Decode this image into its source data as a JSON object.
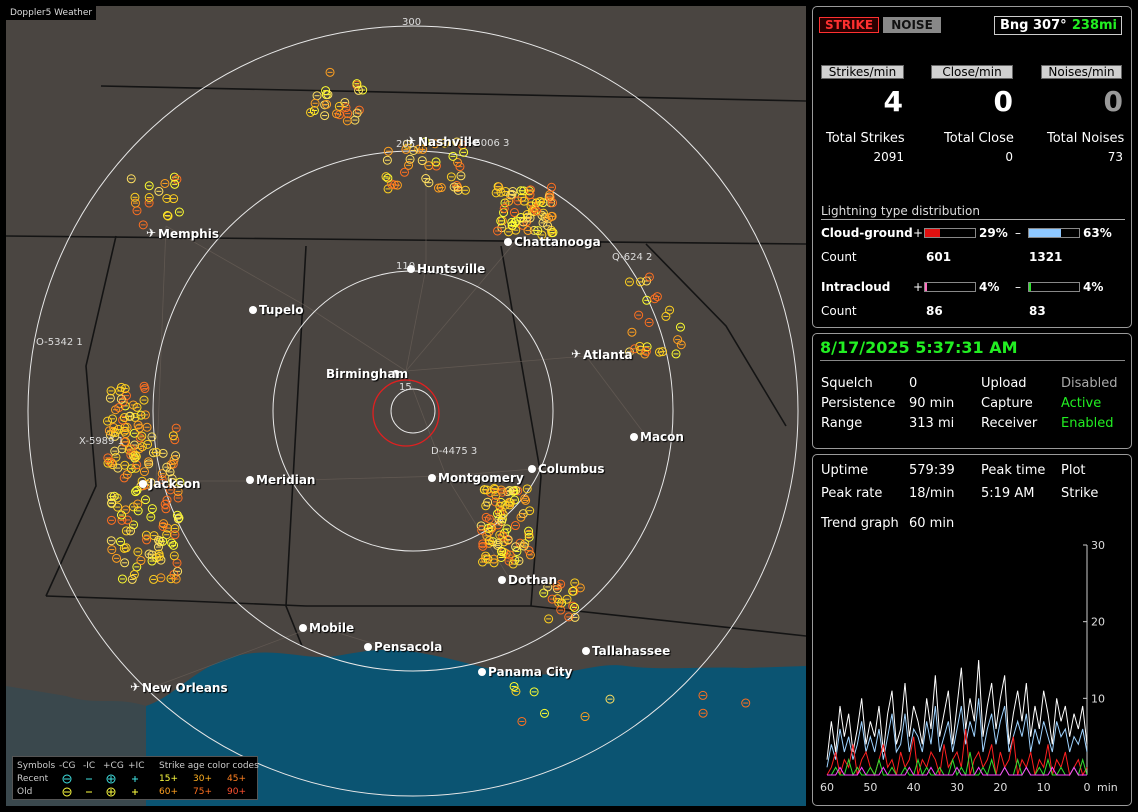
{
  "app": {
    "brand": "Doppler5 Weather"
  },
  "map": {
    "ring_labels": [
      "300",
      "205",
      "110",
      "15"
    ],
    "cities": [
      {
        "name": "Nashville",
        "airport": true
      },
      {
        "name": "Memphis",
        "airport": true
      },
      {
        "name": "Chattanooga",
        "airport": false
      },
      {
        "name": "Huntsville",
        "airport": false
      },
      {
        "name": "Tupelo",
        "airport": false
      },
      {
        "name": "Atlanta",
        "airport": true
      },
      {
        "name": "Birmingham",
        "airport": false
      },
      {
        "name": "Macon",
        "airport": false
      },
      {
        "name": "Jackson",
        "airport": false
      },
      {
        "name": "Meridian",
        "airport": false
      },
      {
        "name": "Montgomery",
        "airport": false
      },
      {
        "name": "Columbus",
        "airport": false
      },
      {
        "name": "Dothan",
        "airport": false
      },
      {
        "name": "Mobile",
        "airport": false
      },
      {
        "name": "Pensacola",
        "airport": false
      },
      {
        "name": "Tallahassee",
        "airport": false
      },
      {
        "name": "Panama City",
        "airport": false
      },
      {
        "name": "New Orleans",
        "airport": true
      }
    ],
    "sensor_labels": [
      "P-6006 3",
      "Q-624 2",
      "O-5342 1",
      "X-5989 1",
      "D-4475 3"
    ],
    "legend": {
      "symbols_label": "Symbols",
      "cols": [
        "-CG",
        "-IC",
        "+CG",
        "+IC"
      ],
      "recent_label": "Recent",
      "old_label": "Old",
      "age_title": "Strike age color codes",
      "age_recent": [
        "15+",
        "30+",
        "45+"
      ],
      "age_old": [
        "60+",
        "75+",
        "90+"
      ]
    }
  },
  "stats": {
    "strike_btn": "STRIKE",
    "noise_btn": "NOISE",
    "bearing": "Bng 307°",
    "distance": "238mi",
    "headers": [
      "Strikes/min",
      "Close/min",
      "Noises/min"
    ],
    "rates": [
      "4",
      "0",
      "0"
    ],
    "totals_labels": [
      "Total Strikes",
      "Total Close",
      "Total Noises"
    ],
    "totals": [
      "2091",
      "0",
      "73"
    ],
    "dist_title": "Lightning type distribution",
    "cg_label": "Cloud-ground",
    "cg_pos_pct": "29%",
    "cg_neg_pct": "63%",
    "count_label": "Count",
    "cg_pos_count": "601",
    "cg_neg_count": "1321",
    "ic_label": "Intracloud",
    "ic_pos_pct": "4%",
    "ic_neg_pct": "4%",
    "ic_pos_count": "86",
    "ic_neg_count": "83",
    "plus": "+",
    "minus": "–",
    "bar_fill": {
      "cg_pos": 0.29,
      "cg_neg": 0.63,
      "ic_pos": 0.04,
      "ic_neg": 0.04
    }
  },
  "status": {
    "datetime": "8/17/2025 5:37:31 AM",
    "squelch_label": "Squelch",
    "squelch": "0",
    "upload_label": "Upload",
    "upload": "Disabled",
    "persistence_label": "Persistence",
    "persistence": "90 min",
    "capture_label": "Capture",
    "capture": "Active",
    "range_label": "Range",
    "range": "313 mi",
    "receiver_label": "Receiver",
    "receiver": "Enabled"
  },
  "trend": {
    "uptime_label": "Uptime",
    "uptime": "579:39",
    "peak_time_label": "Peak time",
    "plot_label": "Plot",
    "peak_rate_label": "Peak rate",
    "peak_rate": "18/min",
    "peak_time": "5:19 AM",
    "plot": "Strike",
    "trend_label": "Trend graph",
    "trend": "60 min",
    "y_ticks": [
      "30",
      "20",
      "10"
    ],
    "x_ticks": [
      "60",
      "50",
      "40",
      "30",
      "20",
      "10",
      "0"
    ],
    "x_unit": "min"
  },
  "chart_data": {
    "type": "line",
    "x": [
      60,
      59,
      58,
      57,
      56,
      55,
      54,
      53,
      52,
      51,
      50,
      49,
      48,
      47,
      46,
      45,
      44,
      43,
      42,
      41,
      40,
      39,
      38,
      37,
      36,
      35,
      34,
      33,
      32,
      31,
      30,
      29,
      28,
      27,
      26,
      25,
      24,
      23,
      22,
      21,
      20,
      19,
      18,
      17,
      16,
      15,
      14,
      13,
      12,
      11,
      10,
      9,
      8,
      7,
      6,
      5,
      4,
      3,
      2,
      1,
      0
    ],
    "xlabel": "min",
    "ylim": [
      0,
      30
    ],
    "series": [
      {
        "color": "#ffffff",
        "values": [
          2,
          7,
          3,
          9,
          5,
          8,
          3,
          6,
          10,
          4,
          7,
          5,
          9,
          3,
          8,
          11,
          4,
          6,
          12,
          5,
          9,
          7,
          4,
          10,
          6,
          13,
          5,
          8,
          11,
          4,
          9,
          14,
          6,
          10,
          7,
          15,
          5,
          9,
          12,
          6,
          10,
          13,
          4,
          8,
          11,
          7,
          12,
          5,
          9,
          6,
          11,
          8,
          4,
          10,
          7,
          9,
          5,
          8,
          6,
          9,
          4
        ]
      },
      {
        "color": "#9fd3ff",
        "values": [
          1,
          4,
          2,
          6,
          3,
          5,
          2,
          4,
          7,
          3,
          5,
          3,
          6,
          2,
          5,
          8,
          3,
          4,
          8,
          3,
          6,
          5,
          3,
          7,
          4,
          9,
          3,
          5,
          7,
          3,
          6,
          9,
          4,
          7,
          5,
          10,
          3,
          6,
          8,
          4,
          7,
          9,
          3,
          5,
          7,
          5,
          8,
          3,
          6,
          4,
          7,
          5,
          3,
          7,
          5,
          6,
          3,
          5,
          4,
          6,
          3
        ]
      },
      {
        "color": "#ff2020",
        "values": [
          0,
          1,
          3,
          0,
          2,
          1,
          4,
          0,
          2,
          3,
          1,
          0,
          2,
          4,
          1,
          2,
          0,
          3,
          1,
          2,
          5,
          0,
          2,
          1,
          3,
          2,
          0,
          4,
          1,
          2,
          3,
          1,
          6,
          0,
          2,
          3,
          1,
          2,
          4,
          0,
          3,
          1,
          2,
          5,
          0,
          2,
          1,
          3,
          0,
          2,
          1,
          4,
          0,
          2,
          1,
          3,
          0,
          1,
          2,
          0,
          1
        ]
      },
      {
        "color": "#30e030",
        "values": [
          0,
          0,
          1,
          0,
          0,
          2,
          0,
          1,
          0,
          0,
          1,
          0,
          2,
          0,
          0,
          1,
          0,
          0,
          1,
          0,
          0,
          2,
          0,
          1,
          0,
          0,
          1,
          0,
          0,
          2,
          0,
          1,
          0,
          3,
          0,
          0,
          1,
          0,
          2,
          0,
          0,
          1,
          0,
          0,
          2,
          0,
          1,
          0,
          0,
          1,
          0,
          2,
          0,
          0,
          1,
          0,
          0,
          1,
          0,
          2,
          0
        ]
      },
      {
        "color": "#ff40ff",
        "values": [
          0,
          0,
          0,
          1,
          0,
          0,
          0,
          0,
          1,
          0,
          0,
          0,
          0,
          1,
          0,
          0,
          0,
          0,
          0,
          1,
          0,
          0,
          0,
          0,
          1,
          0,
          0,
          0,
          0,
          0,
          1,
          0,
          0,
          0,
          0,
          1,
          0,
          0,
          0,
          0,
          0,
          1,
          0,
          0,
          0,
          0,
          1,
          0,
          0,
          0,
          0,
          0,
          1,
          0,
          0,
          0,
          0,
          1,
          0,
          0,
          0
        ]
      }
    ]
  }
}
